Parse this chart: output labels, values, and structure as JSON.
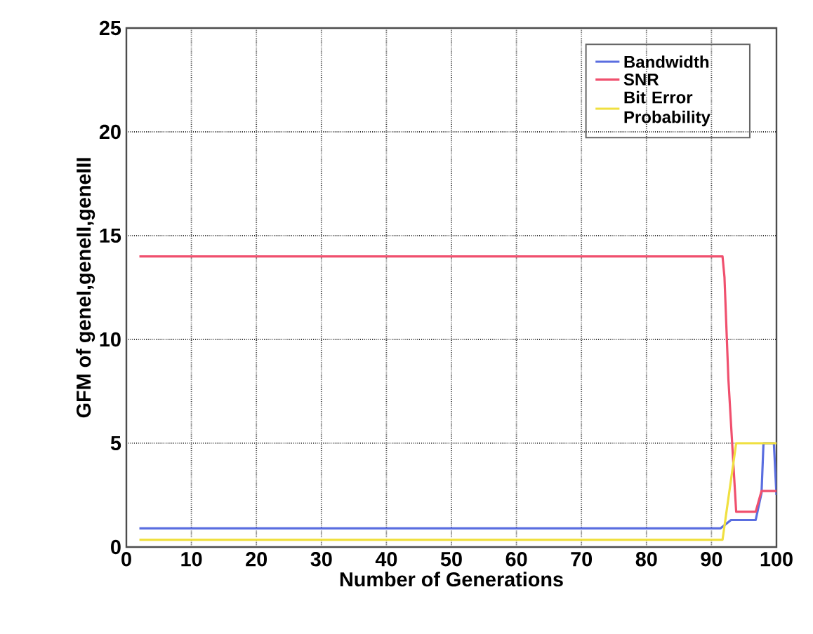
{
  "chart_data": {
    "type": "line",
    "xlabel": "Number of Generations",
    "ylabel": "GFM of geneI,geneII,geneIII",
    "xlim": [
      0,
      100
    ],
    "ylim": [
      0,
      25
    ],
    "xticks": [
      0,
      10,
      20,
      30,
      40,
      50,
      60,
      70,
      80,
      90,
      100
    ],
    "yticks": [
      0,
      5,
      10,
      15,
      20,
      25
    ],
    "grid": true,
    "legend": "top right",
    "line_style": "solid",
    "marker": "none",
    "series": [
      {
        "name": "Bandwidth",
        "color": "#5a6ee0",
        "x": [
          2,
          91.4,
          93,
          96.8,
          97.7,
          98,
          99.6,
          100
        ],
        "values": [
          0.9,
          0.9,
          1.3,
          1.3,
          2.6,
          5,
          5,
          2.5
        ]
      },
      {
        "name": "SNR",
        "color": "#f0506e",
        "x": [
          2,
          91.7,
          92,
          92.6,
          93.8,
          96.8,
          97.7,
          100
        ],
        "values": [
          14,
          14,
          13,
          8.1,
          1.7,
          1.7,
          2.7,
          2.7
        ]
      },
      {
        "name": "Bit Error Probability",
        "color": "#f0e040",
        "x": [
          2,
          91.7,
          93.8,
          100
        ],
        "values": [
          0.35,
          0.35,
          5,
          5
        ]
      }
    ]
  }
}
